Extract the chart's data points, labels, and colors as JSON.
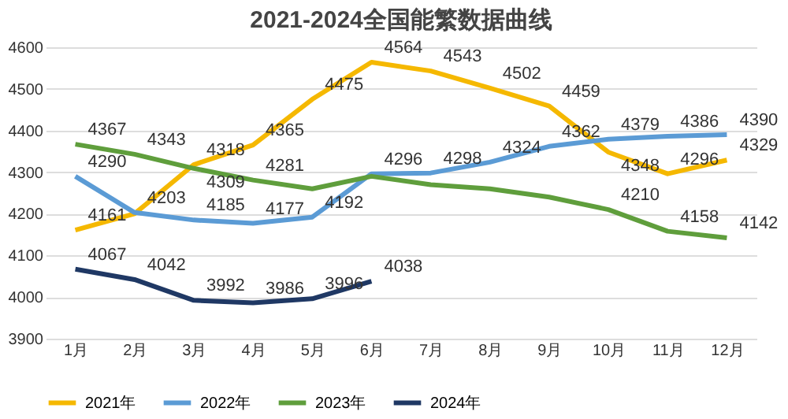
{
  "chart_data": {
    "type": "line",
    "title": "2021-2024全国能繁数据曲线",
    "categories": [
      "1月",
      "2月",
      "3月",
      "4月",
      "5月",
      "6月",
      "7月",
      "8月",
      "9月",
      "10月",
      "11月",
      "12月"
    ],
    "series": [
      {
        "name": "2021年",
        "color": "#f5b800",
        "values": [
          4161,
          4200,
          4318,
          4365,
          4475,
          4564,
          4543,
          4502,
          4459,
          4348,
          4296,
          4329
        ],
        "value_labels": [
          "4161",
          null,
          "4318",
          "4365",
          "4475",
          "4564",
          "4543",
          "4502",
          "4459",
          "4348",
          "4296",
          "4329"
        ]
      },
      {
        "name": "2022年",
        "color": "#5b9bd5",
        "values": [
          4290,
          4203,
          4185,
          4177,
          4192,
          4296,
          4298,
          4324,
          4362,
          4379,
          4386,
          4390
        ],
        "value_labels": [
          "4290",
          "4203",
          "4185",
          "4177",
          "4192",
          "4296",
          "4298",
          "4324",
          "4362",
          "4379",
          "4386",
          "4390"
        ]
      },
      {
        "name": "2023年",
        "color": "#5f9e3c",
        "values": [
          4367,
          4343,
          4309,
          4281,
          4260,
          4290,
          4270,
          4260,
          4240,
          4210,
          4158,
          4142
        ],
        "value_labels": [
          "4367",
          "4343",
          "4309",
          "4281",
          null,
          null,
          null,
          null,
          null,
          "4210",
          "4158",
          "4142"
        ]
      },
      {
        "name": "2024年",
        "color": "#1f3864",
        "values": [
          4067,
          4042,
          3992,
          3986,
          3996,
          4038,
          null,
          null,
          null,
          null,
          null,
          null
        ],
        "value_labels": [
          "4067",
          "4042",
          "3992",
          "3986",
          "3996",
          "4038",
          null,
          null,
          null,
          null,
          null,
          null
        ]
      }
    ],
    "ylim": [
      3900,
      4600
    ],
    "yticks": [
      3900,
      4000,
      4100,
      4200,
      4300,
      4400,
      4500,
      4600
    ],
    "grid": "y",
    "legend": "bottom",
    "marker": "none",
    "line_style": "solid"
  }
}
